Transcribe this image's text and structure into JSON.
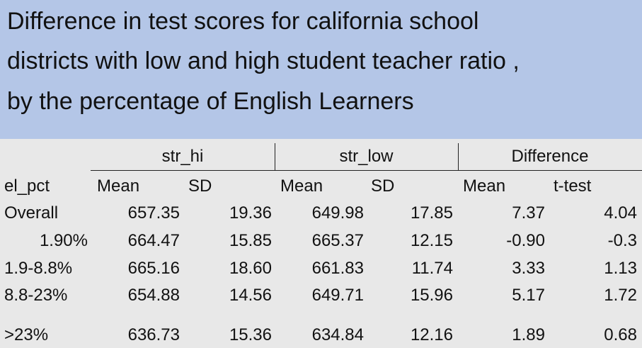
{
  "title": {
    "lines": [
      "Difference in test scores for california school",
      "districts with low and high student teacher ratio ,",
      "by the percentage of English Learners"
    ]
  },
  "table": {
    "groups": [
      "str_hi",
      "str_low",
      "Difference"
    ],
    "subheaders": [
      "el_pct",
      "Mean",
      "SD",
      "Mean",
      "SD",
      "Mean",
      "t-test"
    ],
    "rows": [
      {
        "label": "Overall",
        "hi_mean": "657.35",
        "hi_sd": "19.36",
        "low_mean": "649.98",
        "low_sd": "17.85",
        "diff_mean": "7.37",
        "ttest": "4.04"
      },
      {
        "label": "1.90%",
        "hi_mean": "664.47",
        "hi_sd": "15.85",
        "low_mean": "665.37",
        "low_sd": "12.15",
        "diff_mean": "-0.90",
        "ttest": "-0.3"
      },
      {
        "label": "1.9-8.8%",
        "hi_mean": "665.16",
        "hi_sd": "18.60",
        "low_mean": "661.83",
        "low_sd": "11.74",
        "diff_mean": "3.33",
        "ttest": "1.13"
      },
      {
        "label": "8.8-23%",
        "hi_mean": "654.88",
        "hi_sd": "14.56",
        "low_mean": "649.71",
        "low_sd": "15.96",
        "diff_mean": "5.17",
        "ttest": "1.72"
      },
      {
        "label": ">23%",
        "hi_mean": "636.73",
        "hi_sd": "15.36",
        "low_mean": "634.84",
        "low_sd": "12.16",
        "diff_mean": "1.89",
        "ttest": "0.68"
      }
    ]
  }
}
